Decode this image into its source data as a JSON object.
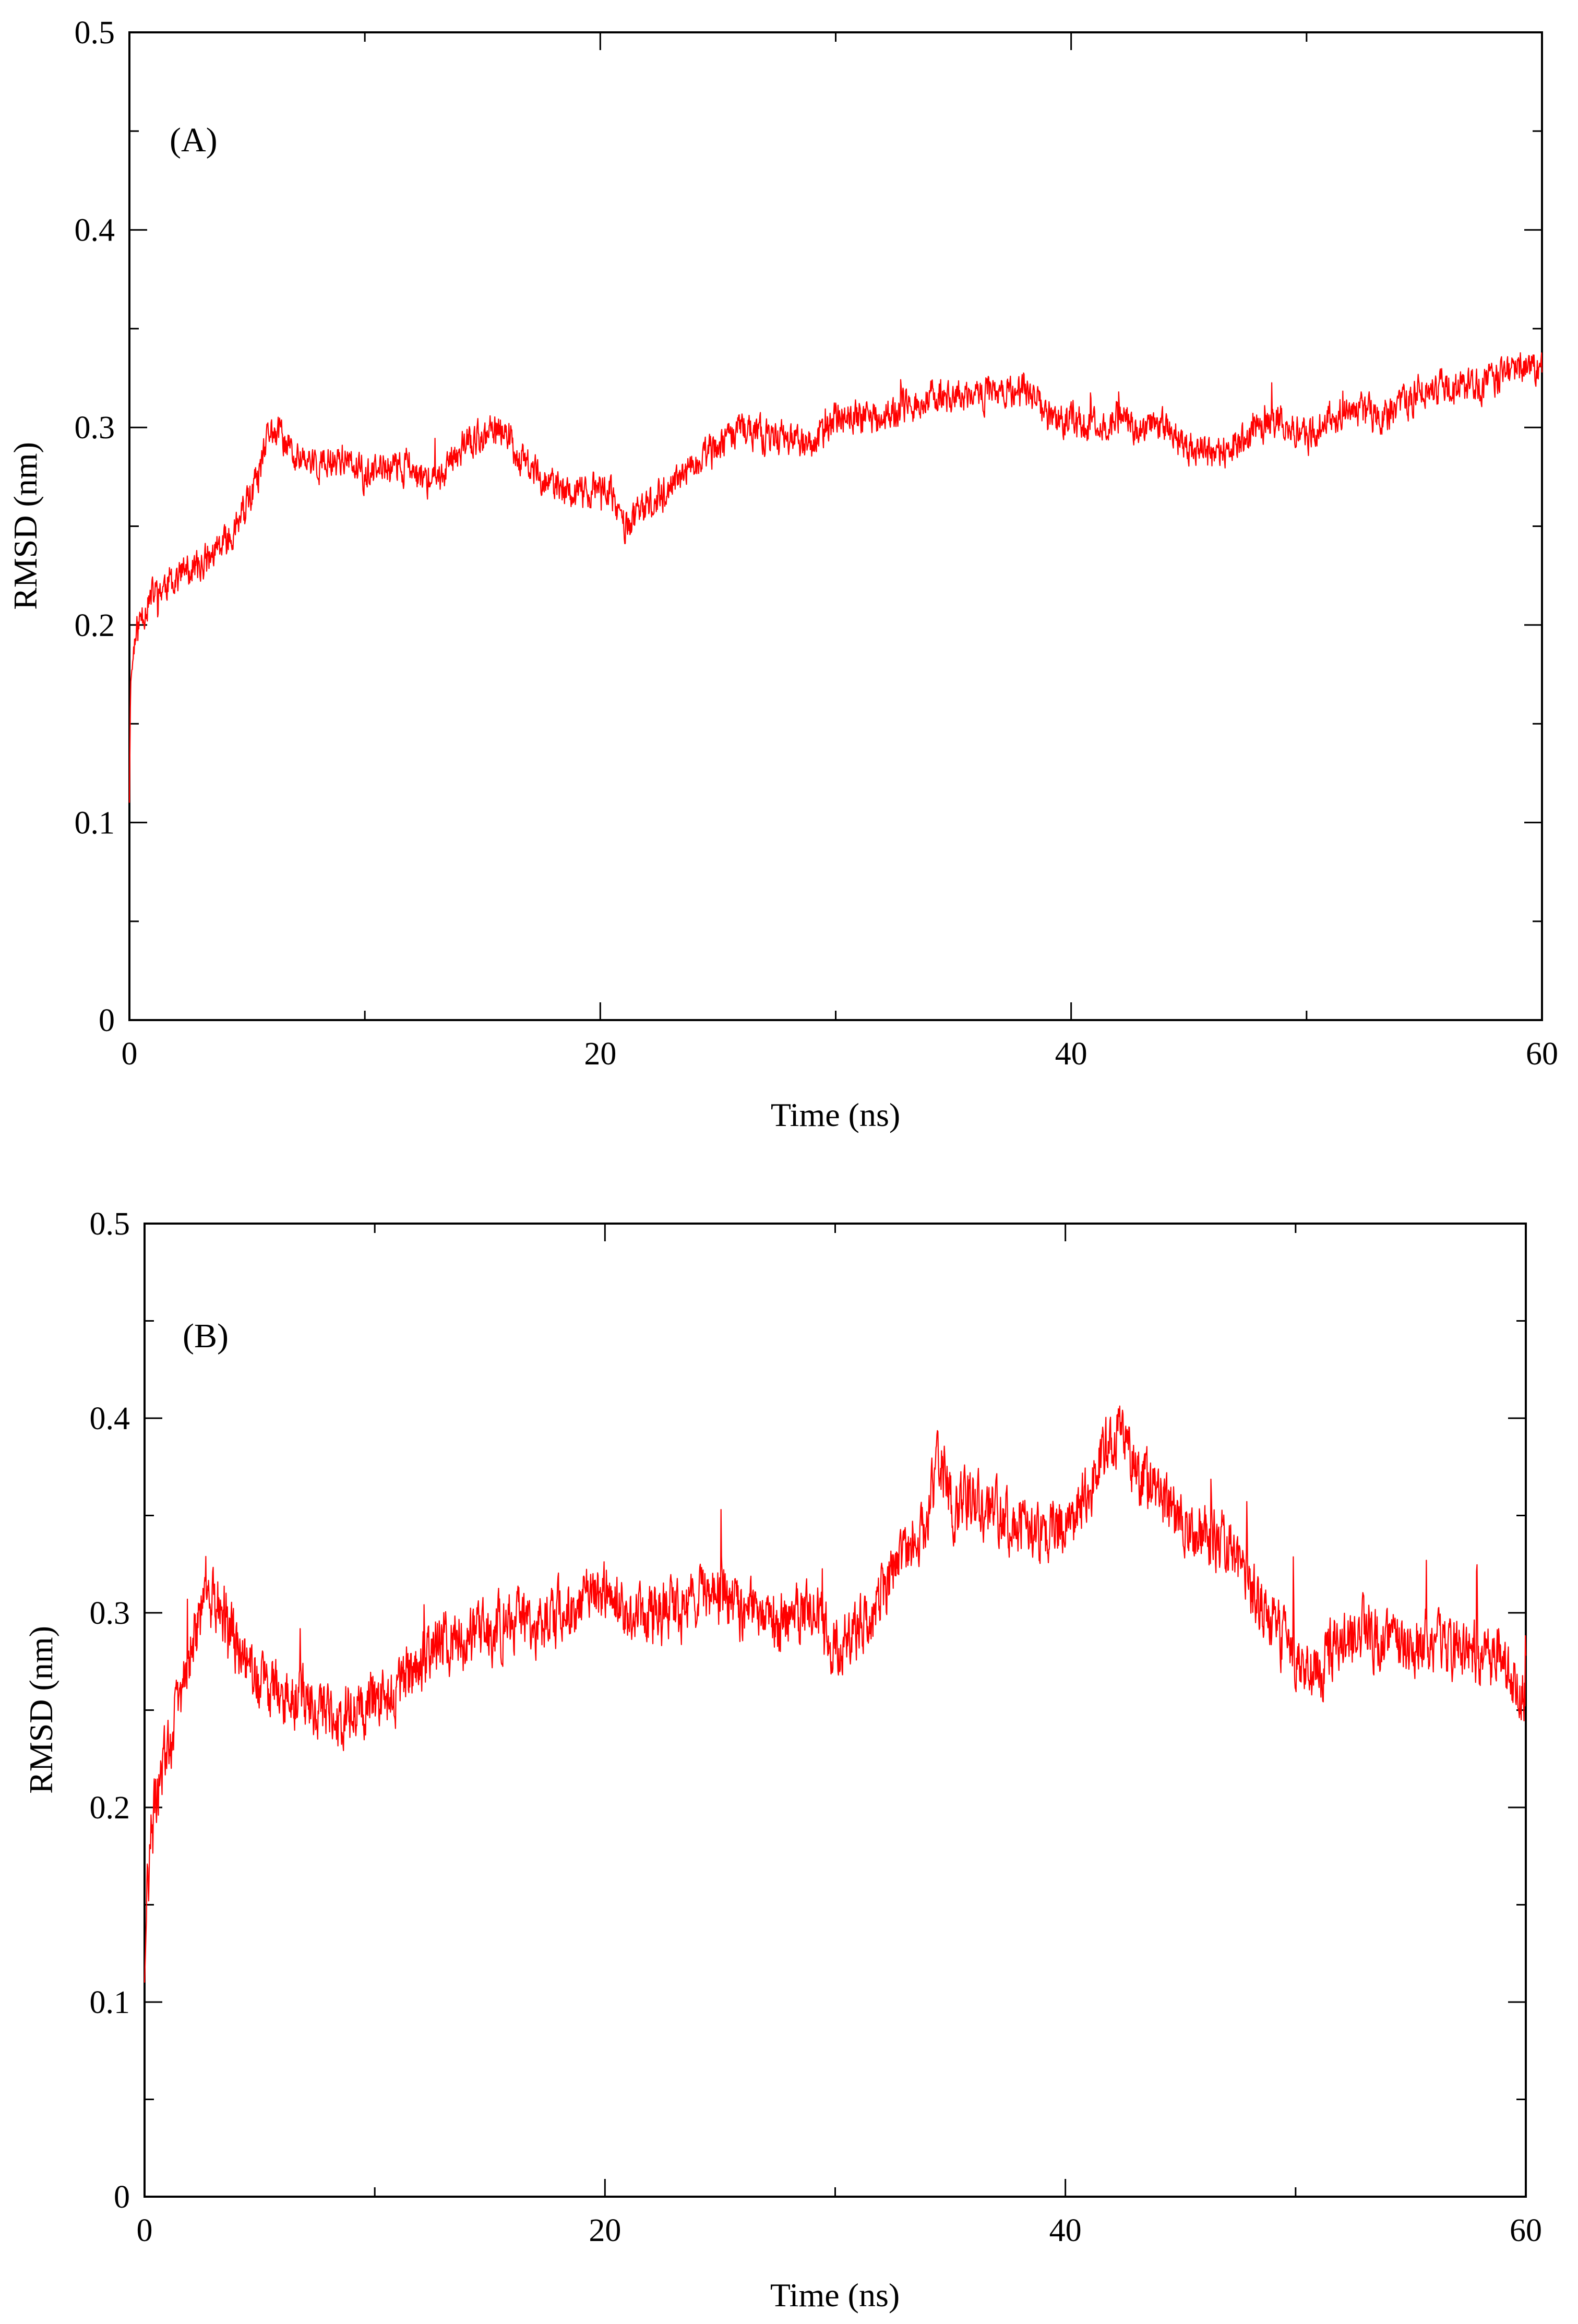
{
  "chart_data": [
    {
      "type": "line",
      "panel_label": "(A)",
      "xlabel": "Time (ns)",
      "ylabel": "RMSD (nm)",
      "xlim": [
        0,
        60
      ],
      "ylim": [
        0,
        0.5
      ],
      "xticks": [
        "0",
        "20",
        "40",
        "60"
      ],
      "yticks": [
        "0",
        "0.1",
        "0.2",
        "0.3",
        "0.4",
        "0.5"
      ],
      "grid": false,
      "color": "#ff0000",
      "series": [
        {
          "x": [
            0,
            0.05,
            0.2,
            0.5,
            1,
            2,
            3,
            4,
            5,
            5.5,
            6,
            6.5,
            7,
            8,
            9,
            10,
            11,
            12,
            13,
            14,
            15,
            16,
            16.5,
            17,
            18,
            19,
            20,
            20.5,
            21,
            22,
            23,
            24,
            25,
            26,
            27,
            28,
            29,
            30,
            31,
            32,
            33,
            34,
            35,
            36,
            37,
            38,
            39,
            40,
            41,
            42,
            43,
            44,
            45,
            46,
            47,
            48,
            49,
            50,
            51,
            52,
            53,
            54,
            55,
            56,
            57,
            58,
            59,
            60
          ],
          "y": [
            0.11,
            0.17,
            0.19,
            0.205,
            0.215,
            0.225,
            0.23,
            0.24,
            0.26,
            0.275,
            0.3,
            0.295,
            0.285,
            0.28,
            0.285,
            0.275,
            0.28,
            0.28,
            0.27,
            0.29,
            0.295,
            0.3,
            0.285,
            0.28,
            0.27,
            0.265,
            0.27,
            0.265,
            0.25,
            0.26,
            0.27,
            0.28,
            0.29,
            0.3,
            0.295,
            0.295,
            0.29,
            0.305,
            0.305,
            0.305,
            0.31,
            0.315,
            0.315,
            0.315,
            0.32,
            0.32,
            0.305,
            0.305,
            0.3,
            0.305,
            0.3,
            0.3,
            0.29,
            0.285,
            0.29,
            0.3,
            0.305,
            0.295,
            0.305,
            0.31,
            0.305,
            0.31,
            0.32,
            0.32,
            0.32,
            0.325,
            0.33,
            0.33
          ]
        }
      ]
    },
    {
      "type": "line",
      "panel_label": "(B)",
      "xlabel": "Time (ns)",
      "ylabel": "RMSD (nm)",
      "xlim": [
        0,
        60
      ],
      "ylim": [
        0,
        0.5
      ],
      "xticks": [
        "0",
        "20",
        "40",
        "60"
      ],
      "yticks": [
        "0",
        "0.1",
        "0.2",
        "0.3",
        "0.4",
        "0.5"
      ],
      "grid": false,
      "color": "#ff0000",
      "series": [
        {
          "x": [
            0,
            0.1,
            0.3,
            0.6,
            1,
            1.5,
            2,
            2.5,
            3,
            3.5,
            4,
            5,
            6,
            7,
            8,
            9,
            10,
            11,
            12,
            13,
            14,
            15,
            16,
            17,
            18,
            19,
            20,
            21,
            22,
            23,
            24,
            25,
            26,
            27,
            28,
            29,
            30,
            31,
            32,
            33,
            34,
            34.5,
            35,
            36,
            37,
            38,
            39,
            40,
            41,
            42,
            42.5,
            43,
            44,
            45,
            46,
            47,
            48,
            49,
            50,
            51,
            52,
            53,
            54,
            55,
            56,
            57,
            58,
            59,
            60
          ],
          "y": [
            0.11,
            0.15,
            0.19,
            0.21,
            0.23,
            0.255,
            0.28,
            0.3,
            0.31,
            0.3,
            0.28,
            0.265,
            0.26,
            0.255,
            0.245,
            0.25,
            0.255,
            0.26,
            0.275,
            0.285,
            0.285,
            0.29,
            0.295,
            0.295,
            0.3,
            0.305,
            0.31,
            0.3,
            0.3,
            0.3,
            0.305,
            0.31,
            0.3,
            0.3,
            0.295,
            0.3,
            0.285,
            0.29,
            0.31,
            0.33,
            0.345,
            0.385,
            0.355,
            0.355,
            0.35,
            0.345,
            0.335,
            0.345,
            0.365,
            0.39,
            0.395,
            0.375,
            0.36,
            0.345,
            0.34,
            0.335,
            0.31,
            0.295,
            0.275,
            0.27,
            0.29,
            0.29,
            0.285,
            0.285,
            0.285,
            0.28,
            0.28,
            0.275,
            0.255
          ]
        }
      ]
    }
  ]
}
